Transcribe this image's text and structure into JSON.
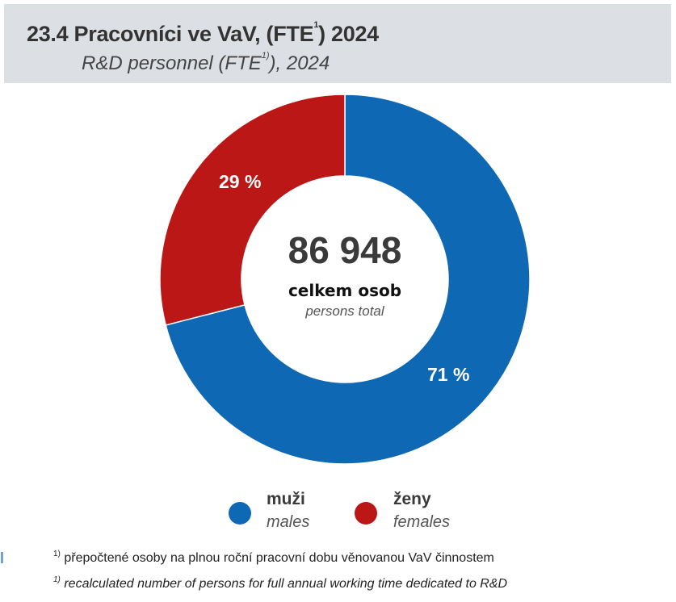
{
  "header": {
    "title_main": "23.4 Pracovníci ve VaV, (FTE",
    "title_sup": "1",
    "title_end": ") 2024",
    "subtitle_main": "R&D personnel (FTE",
    "subtitle_sup": "1)",
    "subtitle_end": "), 2024"
  },
  "center": {
    "total": "86 948",
    "label_cz": "celkem osob",
    "label_en": "persons total"
  },
  "legend": [
    {
      "label_cz": "muži",
      "label_en": "males",
      "color": "#0f68b4"
    },
    {
      "label_cz": "ženy",
      "label_en": "females",
      "color": "#bc1717"
    }
  ],
  "labels": {
    "males_pct": "71 %",
    "females_pct": "29 %"
  },
  "footnotes": {
    "sup": "1)",
    "cz": " přepočtené osoby na plnou roční pracovní dobu věnovanou VaV činnostem",
    "en": " recalculated number of persons for full annual working time dedicated to R&D"
  },
  "chart_data": {
    "type": "pie",
    "subtype": "donut",
    "title": "23.4 Pracovníci ve VaV, (FTE1) 2024",
    "subtitle": "R&D personnel (FTE1)), 2024",
    "categories": [
      "muži / males",
      "ženy / females"
    ],
    "values": [
      71,
      29
    ],
    "unit": "%",
    "total": 86948,
    "total_label": "celkem osob / persons total",
    "colors": [
      "#0f68b4",
      "#bc1717"
    ],
    "legend_position": "bottom",
    "start_angle": "12 o'clock",
    "direction": "males clockwise from top, females counter-clockwise"
  }
}
